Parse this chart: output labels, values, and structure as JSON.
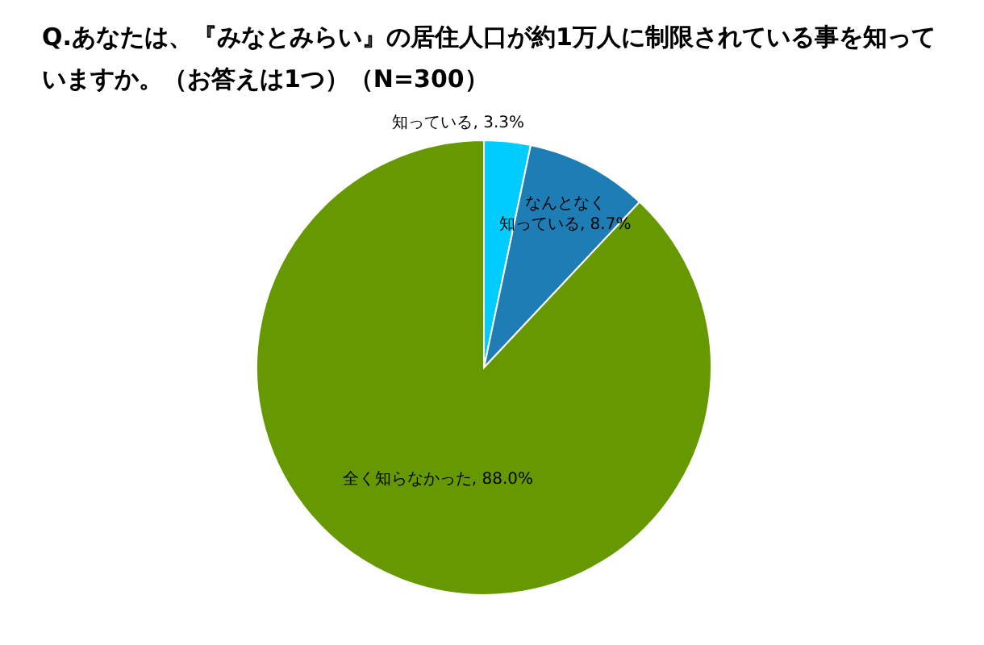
{
  "chart_data": {
    "type": "pie",
    "title": "Q.あなたは、『みなとみらい』の居住人口が約1万人に制限されている事を知っていますか。（お答えは1つ）（N=300）",
    "categories": [
      "知っている",
      "なんとなく知っている",
      "全く知らなかった"
    ],
    "values": [
      3.3,
      8.7,
      88.0
    ],
    "colors": [
      "#00ccff",
      "#1f7db5",
      "#669900"
    ],
    "value_labels": [
      "3.3%",
      "8.7%",
      "88.0%"
    ]
  }
}
